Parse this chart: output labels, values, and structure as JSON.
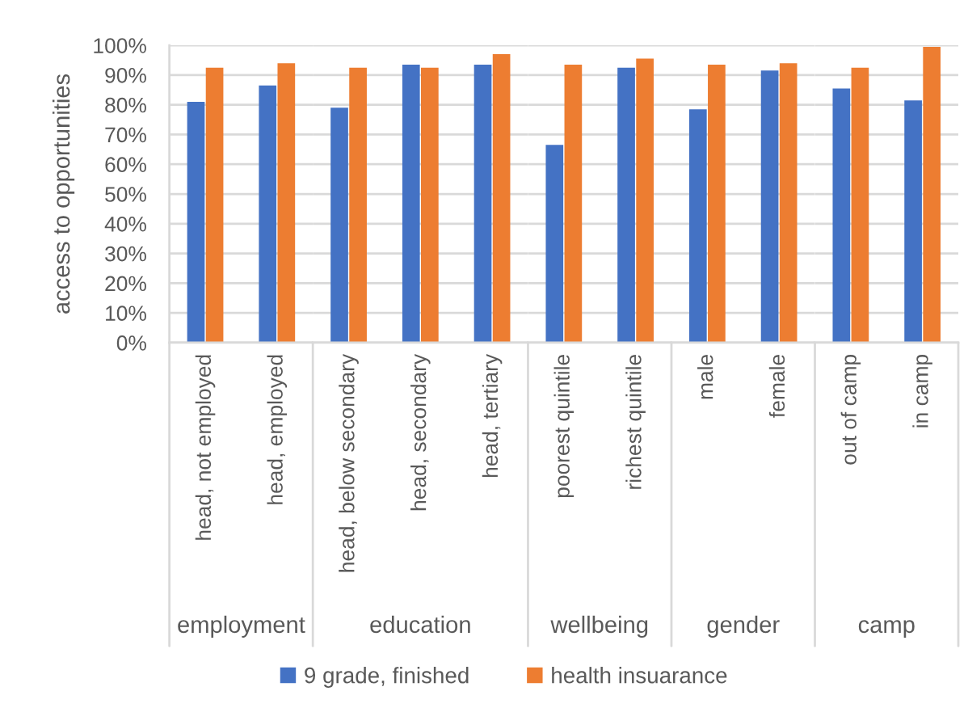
{
  "chart_data": [
    {
      "type": "bar",
      "ylabel": "access to opportunities",
      "xlabel": "employment",
      "categories": [
        "head, not employed",
        "head, employed"
      ],
      "series": [
        {
          "name": "9 grade, finished",
          "color": "#4472c4",
          "values": [
            81,
            86.5
          ]
        },
        {
          "name": "health insuarance",
          "color": "#ed7d31",
          "values": [
            92.5,
            94
          ]
        }
      ],
      "ylim": [
        0,
        100
      ],
      "yticks": [
        {
          "value": 0,
          "label": "0%"
        },
        {
          "value": 10,
          "label": "10%"
        },
        {
          "value": 20,
          "label": "20%"
        },
        {
          "value": 30,
          "label": "30%"
        },
        {
          "value": 40,
          "label": "40%"
        },
        {
          "value": 50,
          "label": "50%"
        },
        {
          "value": 60,
          "label": "60%"
        },
        {
          "value": 70,
          "label": "70%"
        },
        {
          "value": 80,
          "label": "80%"
        },
        {
          "value": 90,
          "label": "90%"
        },
        {
          "value": 100,
          "label": "100%"
        }
      ],
      "grid": "y",
      "legend": "bottom"
    },
    {
      "type": "bar",
      "xlabel": "education",
      "categories": [
        "head, below secondary",
        "head, secondary",
        "head, tertiary"
      ],
      "series": [
        {
          "color": "#4472c4",
          "values": [
            79,
            93.5,
            93.5
          ]
        },
        {
          "color": "#ed7d31",
          "values": [
            92.5,
            92.5,
            97
          ]
        }
      ],
      "ylim": [
        0,
        100
      ],
      "yticks": [
        0,
        10,
        20,
        30,
        40,
        50,
        60,
        70,
        80,
        90,
        100
      ],
      "grid": "y",
      "tick_labels": "x"
    },
    {
      "type": "bar",
      "xlabel": "wellbeing",
      "categories": [
        "poorest quintile",
        "richest quintile"
      ],
      "series": [
        {
          "color": "#4472c4",
          "values": [
            66.5,
            92.5
          ]
        },
        {
          "color": "#ed7d31",
          "values": [
            93.5,
            95.5
          ]
        }
      ],
      "ylim": [
        0,
        100
      ],
      "yticks": [
        0,
        10,
        20,
        30,
        40,
        50,
        60,
        70,
        80,
        90,
        100
      ],
      "grid": "y",
      "tick_labels": "x"
    },
    {
      "type": "bar",
      "xlabel": "gender",
      "categories": [
        "male",
        "female"
      ],
      "series": [
        {
          "color": "#4472c4",
          "values": [
            78.5,
            91.5
          ]
        },
        {
          "color": "#ed7d31",
          "values": [
            93.5,
            94
          ]
        }
      ],
      "ylim": [
        0,
        100
      ],
      "yticks": [
        0,
        10,
        20,
        30,
        40,
        50,
        60,
        70,
        80,
        90,
        100
      ],
      "grid": "y",
      "tick_labels": "x"
    },
    {
      "type": "bar",
      "xlabel": "camp",
      "categories": [
        "out of camp",
        "in camp"
      ],
      "series": [
        {
          "color": "#4472c4",
          "values": [
            85.5,
            81.5
          ]
        },
        {
          "color": "#ed7d31",
          "values": [
            92.5,
            99.5
          ]
        }
      ],
      "ylim": [
        0,
        100
      ],
      "yticks": [
        0,
        10,
        20,
        30,
        40,
        50,
        60,
        70,
        80,
        90,
        100
      ],
      "grid": "y",
      "tick_labels": "x"
    }
  ]
}
